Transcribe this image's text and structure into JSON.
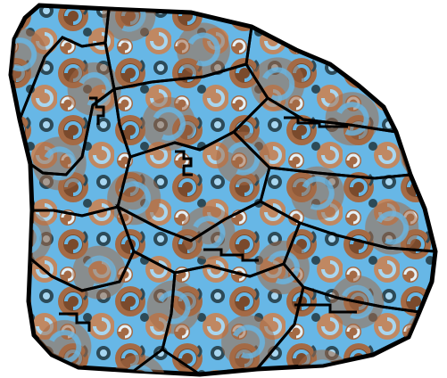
{
  "game": {
    "type": "jigsaw-puzzle",
    "state": "assembled",
    "visible_text": []
  },
  "palette": {
    "outline": "#000000",
    "background": "#ffffff",
    "brown_dark": "#7a4a2c",
    "brown": "#a46a45",
    "brown_light": "#c08862",
    "sky_blue": "#67b7e6",
    "pale_blue": "#a8d6f0",
    "teal_dark": "#2c4a58",
    "white_swirl": "#e4f2fa"
  },
  "puzzle": {
    "piece_count": 15,
    "pieces": [
      {
        "name": "piece-top-left"
      },
      {
        "name": "piece-top-middle"
      },
      {
        "name": "piece-top-right"
      },
      {
        "name": "piece-upper-left-strip"
      },
      {
        "name": "piece-center-upper"
      },
      {
        "name": "piece-right-upper"
      },
      {
        "name": "piece-left-middle"
      },
      {
        "name": "piece-center"
      },
      {
        "name": "piece-right-middle"
      },
      {
        "name": "piece-left-lower"
      },
      {
        "name": "piece-center-lower"
      },
      {
        "name": "piece-right-lower"
      },
      {
        "name": "piece-bottom-left"
      },
      {
        "name": "piece-bottom-center"
      },
      {
        "name": "piece-bottom-right"
      }
    ]
  }
}
